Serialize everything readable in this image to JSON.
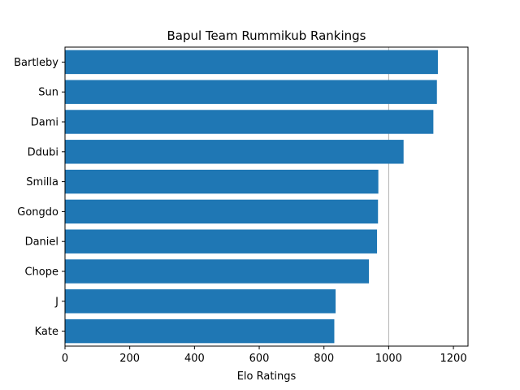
{
  "chart_data": {
    "type": "bar",
    "orientation": "horizontal",
    "title": "Bapul Team Rummikub Rankings",
    "xlabel": "Elo Ratings",
    "ylabel": "",
    "categories": [
      "Bartleby",
      "Sun",
      "Dami",
      "Ddubi",
      "Smilla",
      "Gongdo",
      "Daniel",
      "Chope",
      "J",
      "Kate"
    ],
    "values": [
      1152,
      1149,
      1138,
      1046,
      968,
      967,
      964,
      939,
      836,
      832
    ],
    "xlim": [
      0,
      1245
    ],
    "xticks": [
      0,
      200,
      400,
      600,
      800,
      1000,
      1200
    ],
    "xtick_labels": [
      "0",
      "200",
      "400",
      "600",
      "800",
      "1000",
      "1200"
    ],
    "reference_line_x": 1000,
    "bar_color": "#1f77b4",
    "grid": false,
    "legend": "none"
  }
}
